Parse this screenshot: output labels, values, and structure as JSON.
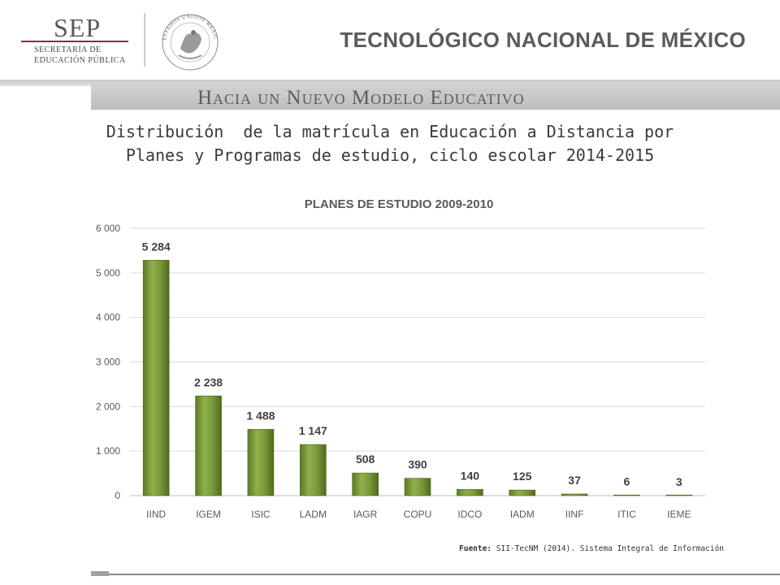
{
  "header": {
    "sep_title": "SEP",
    "sep_subtitle_line1": "SECRETARÍA DE",
    "sep_subtitle_line2": "EDUCACIÓN PÚBLICA",
    "seal_text": "ESTADOS UNIDOS MEXICANOS",
    "institution": "TECNOLÓGICO NACIONAL DE MÉXICO",
    "band_text": "Hacia un Nuevo Modelo Educativo"
  },
  "slide": {
    "title_line1": "Distribución  de la matrícula en Educación a Distancia por",
    "title_line2": "Planes y Programas de estudio, ciclo escolar 2014-2015"
  },
  "source": {
    "label": "Fuente:",
    "text": " SII-TecNM (2014). Sistema Integral de Información"
  },
  "colors": {
    "bar": "#7a9a3a",
    "bar_dark": "#5c7a26",
    "bar_light": "#9cbb55",
    "grid": "#d9d9d9",
    "band": "#c8c8c8",
    "sep_line": "#9b2247"
  },
  "chart_data": {
    "type": "bar",
    "title": "PLANES DE ESTUDIO  2009-2010",
    "categories": [
      "IIND",
      "IGEM",
      "ISIC",
      "LADM",
      "IAGR",
      "COPU",
      "IDCO",
      "IADM",
      "IINF",
      "ITIC",
      "IEME"
    ],
    "values": [
      5284,
      2238,
      1488,
      1147,
      508,
      390,
      140,
      125,
      37,
      6,
      3
    ],
    "data_labels": [
      "5 284",
      "2 238",
      "1 488",
      "1 147",
      "508",
      "390",
      "140",
      "125",
      "37",
      "6",
      "3"
    ],
    "y_ticks": [
      0,
      1000,
      2000,
      3000,
      4000,
      5000,
      6000
    ],
    "y_tick_labels": [
      "0",
      "1 000",
      "2 000",
      "3 000",
      "4 000",
      "5 000",
      "6 000"
    ],
    "ylim": [
      0,
      6000
    ],
    "grid": true,
    "legend": "none"
  }
}
